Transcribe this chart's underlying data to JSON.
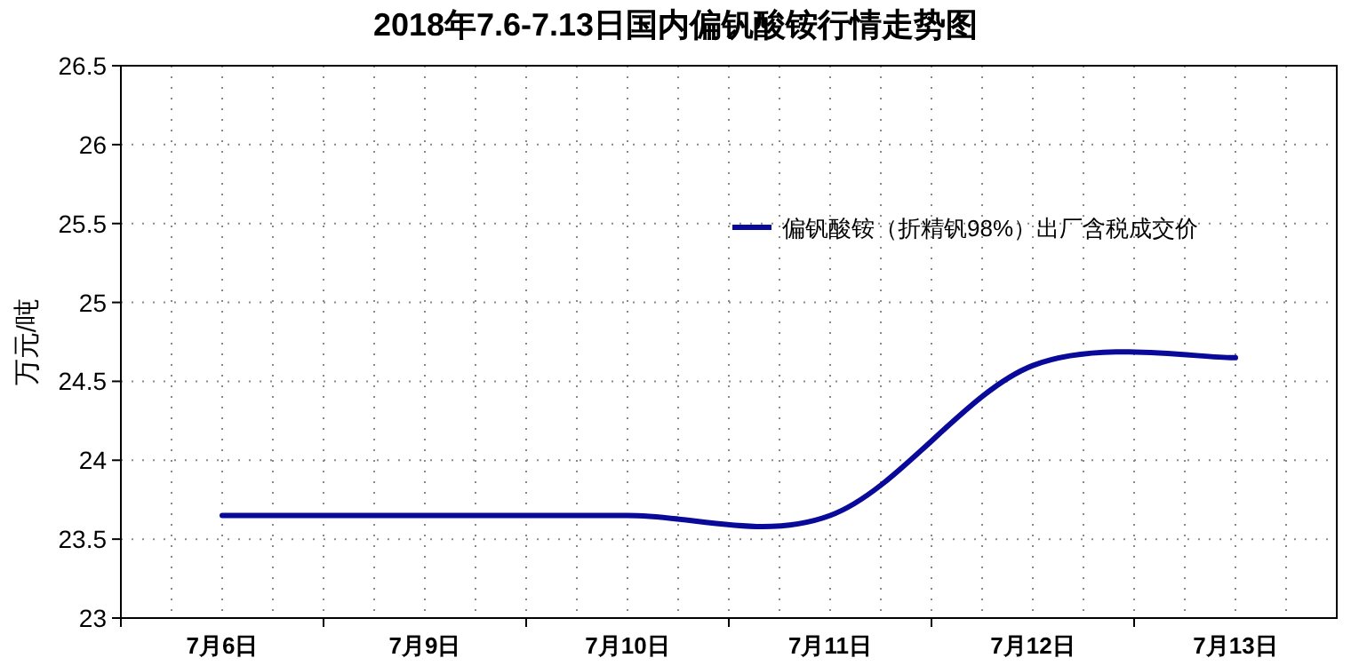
{
  "chart_data": {
    "type": "line",
    "title": "2018年7.6-7.13日国内偏钒酸铵行情走势图",
    "ylabel": "万元/吨",
    "categories": [
      "7月6日",
      "7月9日",
      "7月10日",
      "7月11日",
      "7月12日",
      "7月13日"
    ],
    "series": [
      {
        "name": "偏钒酸铵（折精钒98%）出厂含税成交价",
        "color": "#0a0a9a",
        "values": [
          23.65,
          23.65,
          23.65,
          23.65,
          24.6,
          24.65
        ]
      }
    ],
    "ylim": [
      23,
      26.5
    ],
    "yticks": [
      23,
      23.5,
      24,
      24.5,
      25,
      25.5,
      26,
      26.5
    ],
    "grid": true,
    "legend": "top right",
    "marker": "none",
    "line_style": "solid"
  }
}
